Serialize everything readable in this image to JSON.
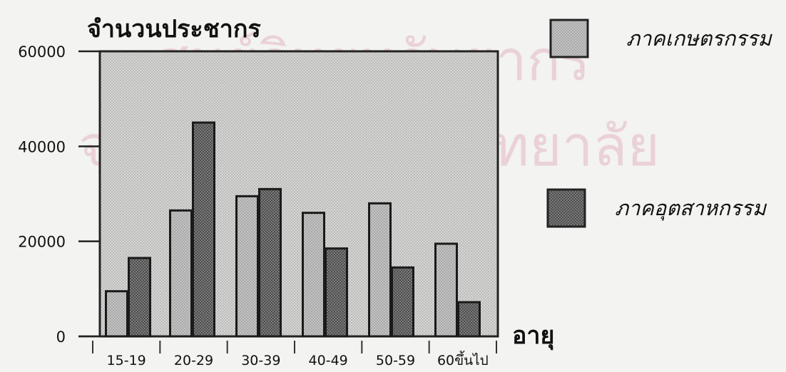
{
  "watermark": {
    "line1": "ศูนย์วิทยทรัพยากร",
    "line2": "จุฬาลงกรณ์มหาวิทยาลัย"
  },
  "chart_data": {
    "type": "bar",
    "ylabel": "จำนวนประชากร",
    "xlabel": "อายุ",
    "ylim": [
      0,
      60000
    ],
    "yticks": [
      "0",
      "20000",
      "40000",
      "60000"
    ],
    "categories": [
      "15-19",
      "20-29",
      "30-39",
      "40-49",
      "50-59",
      "60ขึ้นไป"
    ],
    "series": [
      {
        "name": "ภาคเกษตรกรรม",
        "values": [
          9500,
          26500,
          29500,
          26000,
          28000,
          19500
        ],
        "color": "#bdbdbd"
      },
      {
        "name": "ภาคอุตสาหกรรม",
        "values": [
          16500,
          45000,
          31000,
          18500,
          14500,
          7200
        ],
        "color": "#6f6f6f"
      }
    ],
    "legend_position": "right",
    "grid": false,
    "plot_background": "#cfcfcf"
  }
}
